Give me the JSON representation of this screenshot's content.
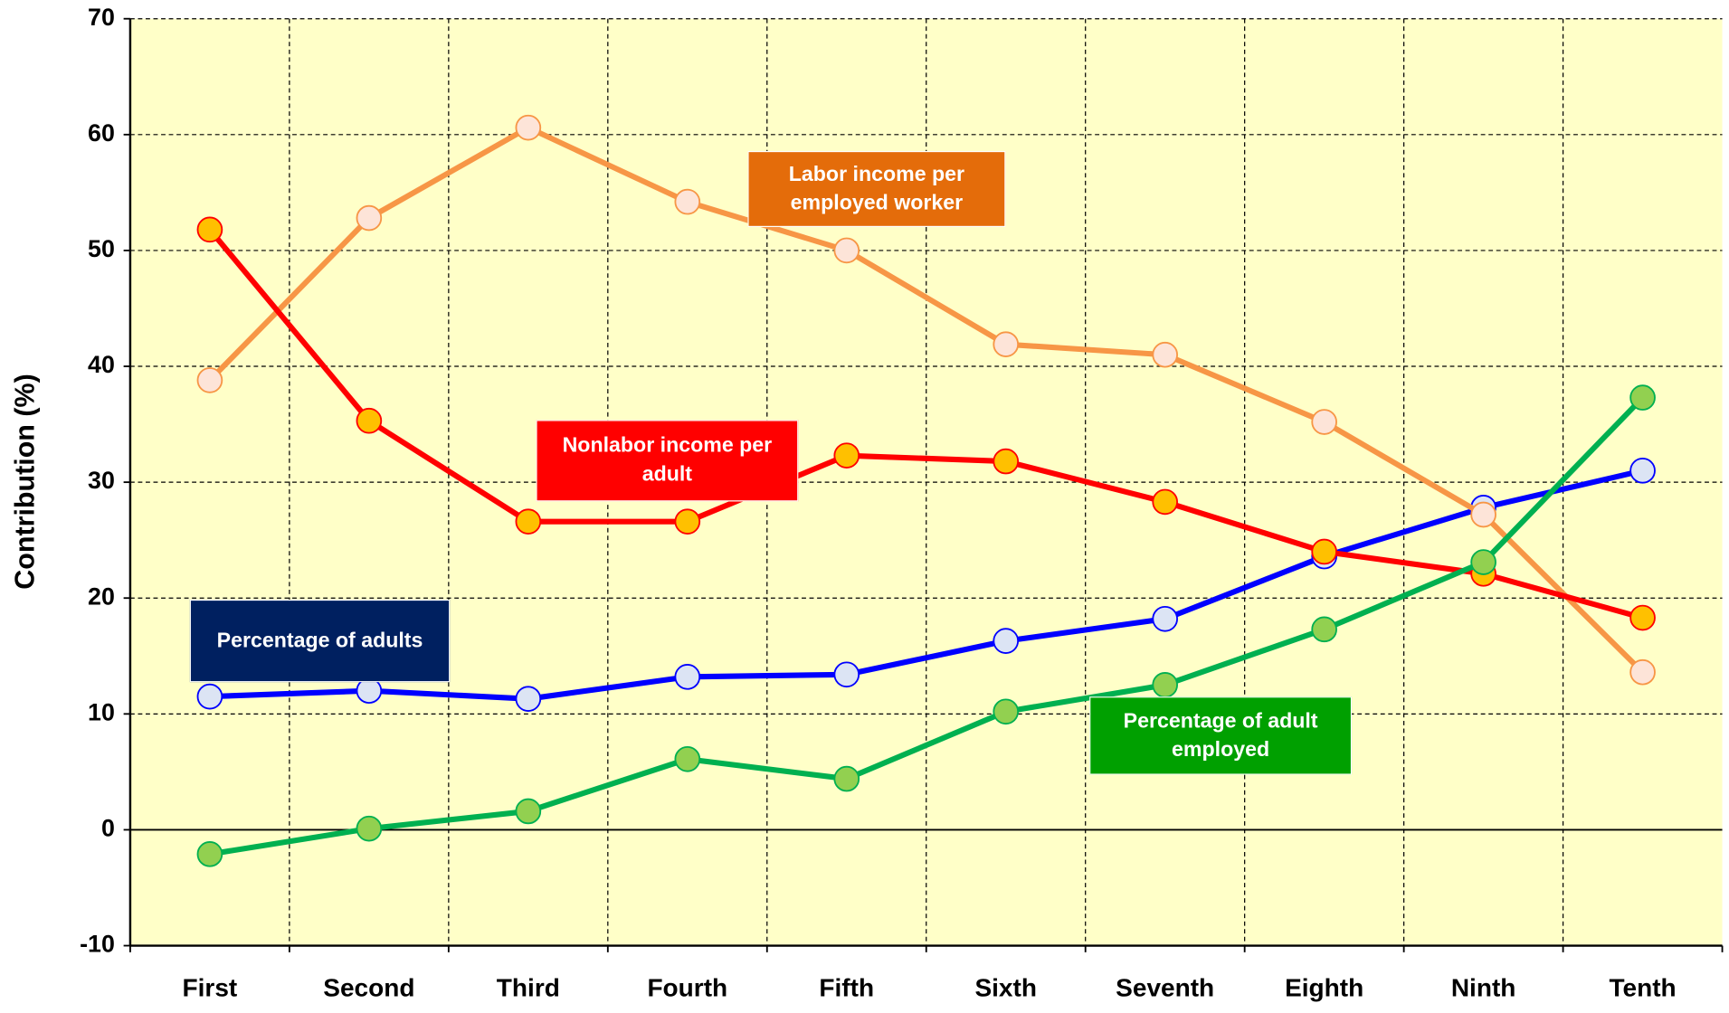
{
  "chart_data": {
    "type": "line",
    "ylabel": "Contribution (%)",
    "categories": [
      "First",
      "Second",
      "Third",
      "Fourth",
      "Fifth",
      "Sixth",
      "Seventh",
      "Eighth",
      "Ninth",
      "Tenth"
    ],
    "series": [
      {
        "name": "Percentage of adults",
        "color": "#0000ff",
        "marker_color": "#dce4f4",
        "box_color": "#002060",
        "values": [
          11.5,
          12.0,
          11.3,
          13.2,
          13.4,
          16.3,
          18.2,
          23.6,
          27.8,
          31.0
        ]
      },
      {
        "name": "Labor income per employed worker",
        "color": "#f79646",
        "marker_color": "#fde4d8",
        "box_color": "#e46c0a",
        "values": [
          38.8,
          52.8,
          60.6,
          54.2,
          50.0,
          41.9,
          41.0,
          35.2,
          27.2,
          13.6
        ]
      },
      {
        "name": "Nonlabor income per adult",
        "color": "#ff0000",
        "marker_color": "#ffc000",
        "box_color": "#ff0000",
        "values": [
          51.8,
          35.3,
          26.6,
          26.6,
          32.3,
          31.8,
          28.3,
          24.0,
          22.1,
          18.3
        ]
      },
      {
        "name": "Percentage of adult employed",
        "color": "#00b050",
        "marker_color": "#92d050",
        "box_color": "#00a000",
        "values": [
          -2.1,
          0.1,
          1.6,
          6.1,
          4.4,
          10.2,
          12.5,
          17.3,
          23.1,
          37.3
        ]
      }
    ],
    "ylim": [
      -10,
      70
    ],
    "yticks": [
      -10,
      0,
      10,
      20,
      30,
      40,
      50,
      60,
      70
    ],
    "grid": true,
    "background": "#ffffc8"
  }
}
